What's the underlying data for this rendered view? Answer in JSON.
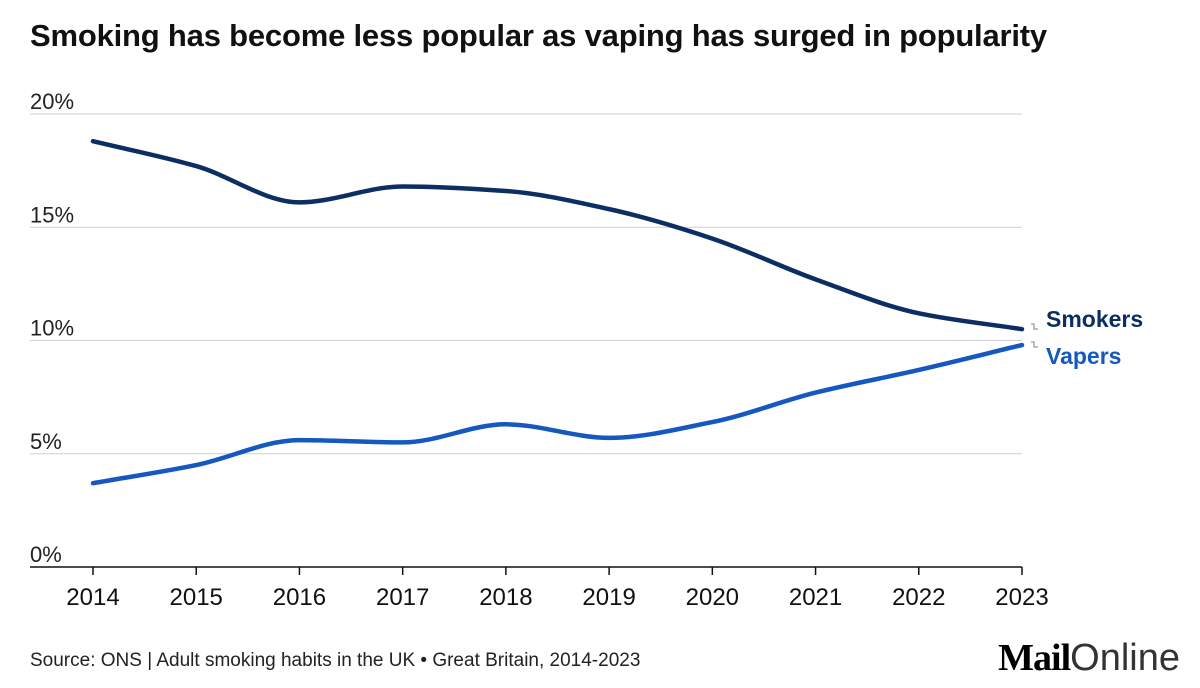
{
  "title": "Smoking has become less popular as vaping has surged in popularity",
  "footer": "Source: ONS | Adult smoking habits in the UK • Great Britain, 2014-2023",
  "brand": {
    "part1": "Mail",
    "part2": "Online"
  },
  "colors": {
    "smokers": "#0b2e63",
    "vapers": "#1458c0",
    "grid": "#cfcfcf",
    "axis": "#111111",
    "connector": "#aaaaaa"
  },
  "chart_data": {
    "type": "line",
    "title": "Smoking has become less popular as vaping has surged in popularity",
    "xlabel": "",
    "ylabel": "",
    "x": [
      2014,
      2015,
      2016,
      2017,
      2018,
      2019,
      2020,
      2021,
      2022,
      2023
    ],
    "x_tick_labels": [
      "2014",
      "2015",
      "2016",
      "2017",
      "2018",
      "2019",
      "2020",
      "2021",
      "2022",
      "2023"
    ],
    "y_ticks": [
      0,
      5,
      10,
      15,
      20
    ],
    "y_tick_labels": [
      "0%",
      "5%",
      "10%",
      "15%",
      "20%"
    ],
    "ylim": [
      0,
      20
    ],
    "grid": true,
    "legend": "direct labels at right end of lines",
    "series": [
      {
        "name": "Smokers",
        "color": "#0b2e63",
        "values": [
          18.8,
          17.7,
          16.1,
          16.8,
          16.6,
          15.8,
          14.5,
          12.7,
          11.2,
          10.5
        ]
      },
      {
        "name": "Vapers",
        "color": "#1458c0",
        "values": [
          3.7,
          4.5,
          5.6,
          5.5,
          6.3,
          5.7,
          6.4,
          7.7,
          8.7,
          9.8
        ]
      }
    ]
  }
}
